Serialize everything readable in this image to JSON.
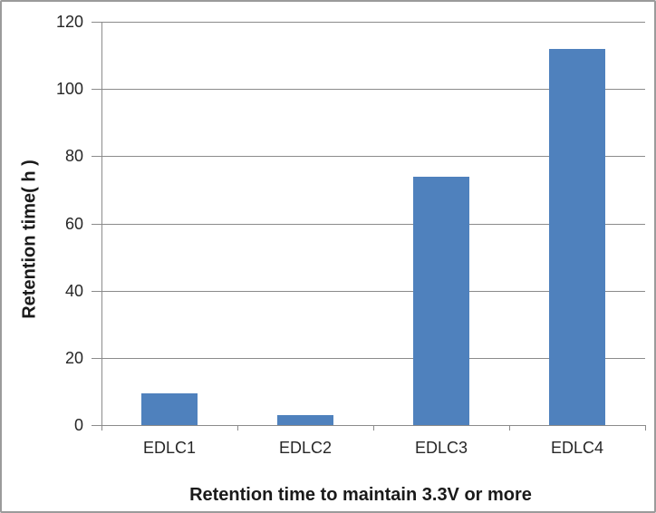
{
  "chart_data": {
    "type": "bar",
    "title": "Retention time to maintain 3.3V or more",
    "title_position": "bottom",
    "xlabel": "",
    "ylabel": "Retention time( h )",
    "categories": [
      "EDLC1",
      "EDLC2",
      "EDLC3",
      "EDLC4"
    ],
    "values": [
      9.5,
      3,
      74,
      112
    ],
    "ylim": [
      0,
      120
    ],
    "yticks": [
      0,
      20,
      40,
      60,
      80,
      100,
      120
    ],
    "grid": "horizontal",
    "legend": "none",
    "bar_color": "#4f81bd",
    "axis_color": "#8b8b8b",
    "text_color": "#262626"
  }
}
